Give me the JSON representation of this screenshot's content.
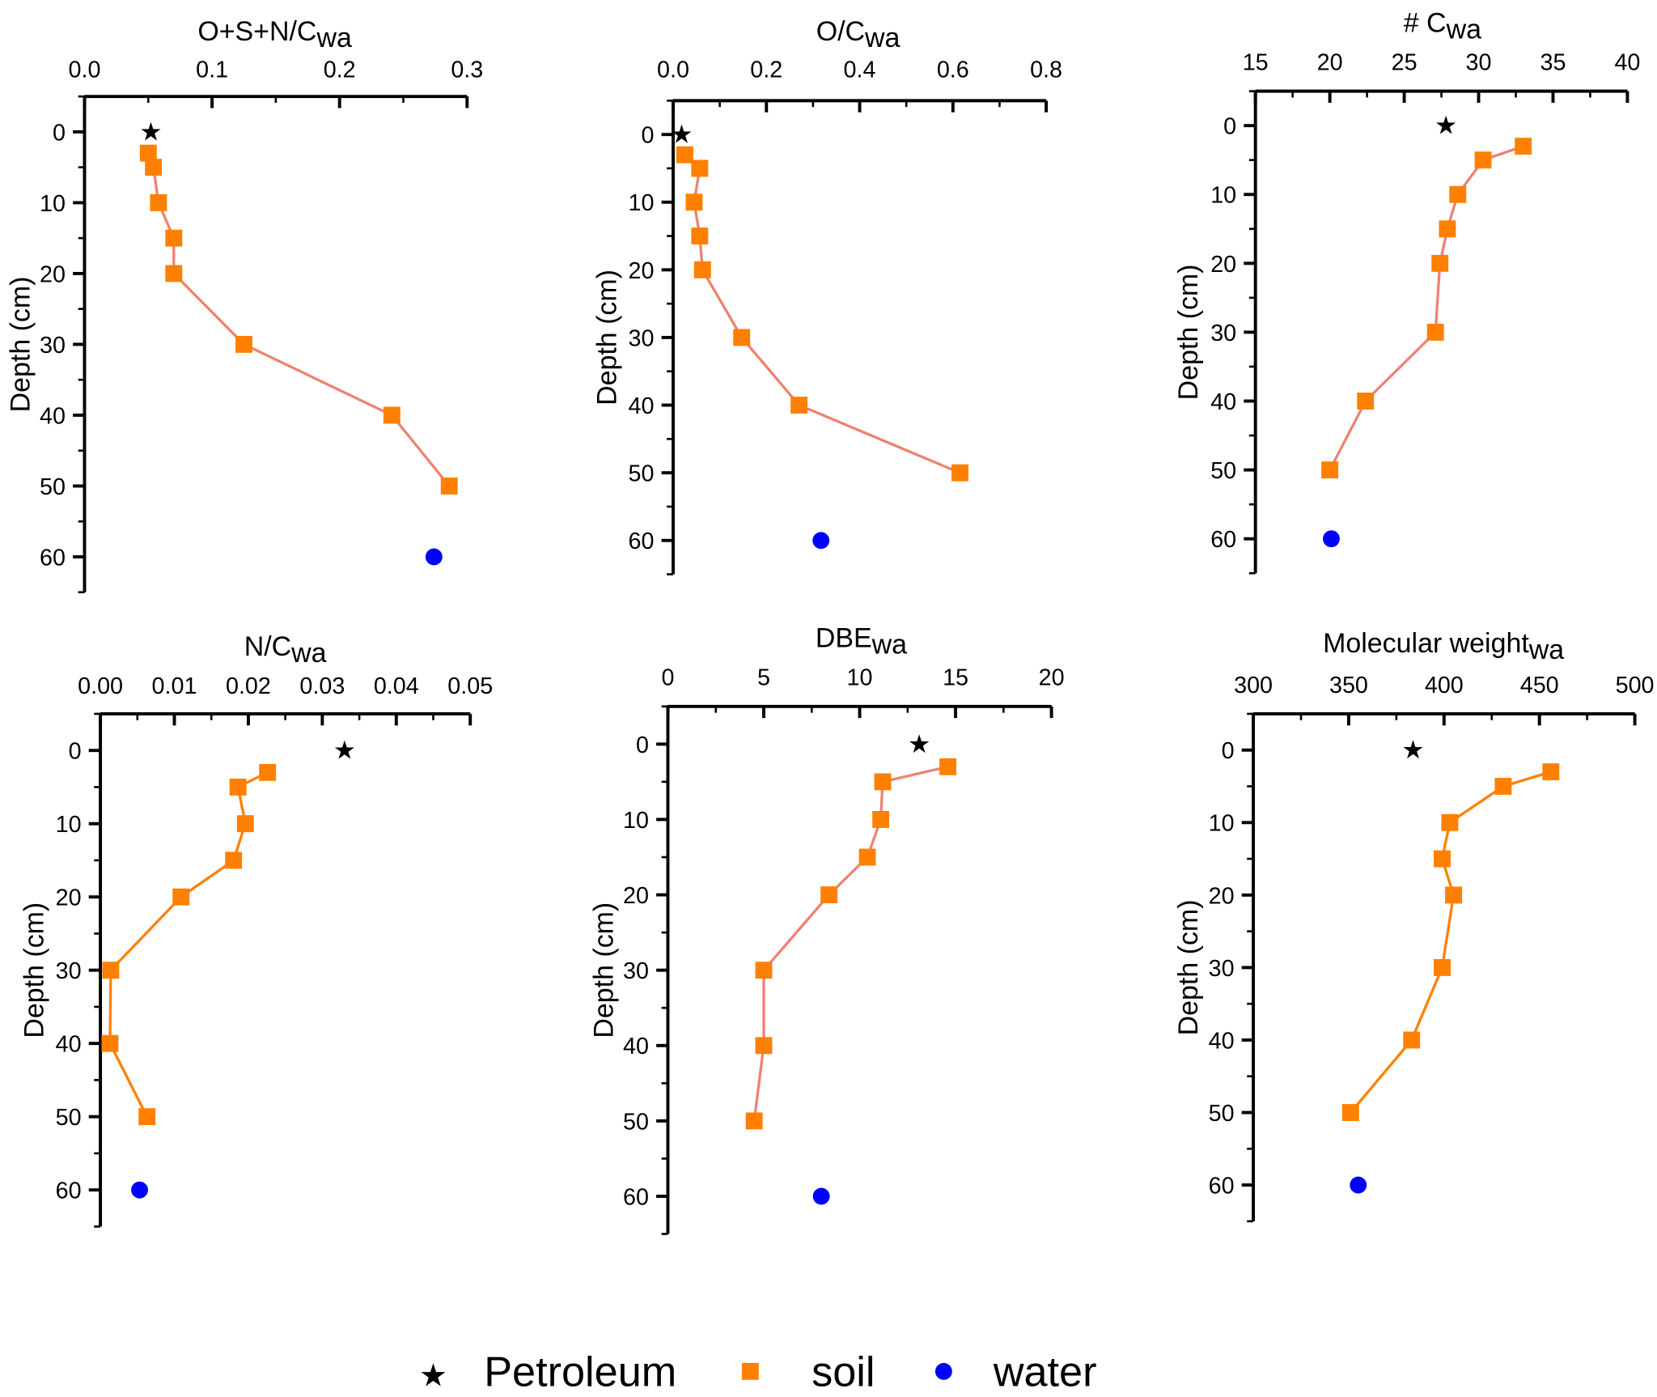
{
  "colors": {
    "petroleum": "#000000",
    "soil": "#ff8000",
    "water": "#0000ff",
    "line_salmon": "#f08070",
    "line_orange": "#ff8000"
  },
  "legend": [
    {
      "label": "Petroleum",
      "marker": "star"
    },
    {
      "label": "soil",
      "marker": "square"
    },
    {
      "label": "water",
      "marker": "circle"
    }
  ],
  "chart_data": [
    {
      "type": "line",
      "title_main": "O+S+N/C",
      "title_sub": "wa",
      "ylabel": "Depth (cm)",
      "xlim": [
        0,
        0.3
      ],
      "xticks": [
        "0.0",
        "0.1",
        "0.2",
        "0.3"
      ],
      "xtick_values": [
        0,
        0.1,
        0.2,
        0.3
      ],
      "xminor": 0.05,
      "ylim": [
        65,
        -5
      ],
      "yticks": [
        0,
        10,
        20,
        30,
        40,
        50,
        60
      ],
      "line_color": "salmon",
      "petroleum": {
        "x": 0.052,
        "depth": 0
      },
      "soil": {
        "x": [
          0.05,
          0.054,
          0.058,
          0.07,
          0.07,
          0.125,
          0.241,
          0.286
        ],
        "depth": [
          3,
          5,
          10,
          15,
          20,
          30,
          40,
          50
        ]
      },
      "water": {
        "x": 0.274,
        "depth": 60
      }
    },
    {
      "type": "line",
      "title_main": "O/C",
      "title_sub": "wa",
      "ylabel": "Depth (cm)",
      "xlim": [
        0,
        0.8
      ],
      "xticks": [
        "0.0",
        "0.2",
        "0.4",
        "0.6",
        "0.8"
      ],
      "xtick_values": [
        0,
        0.2,
        0.4,
        0.6,
        0.8
      ],
      "xminor": 0.1,
      "ylim": [
        65,
        -5
      ],
      "yticks": [
        0,
        10,
        20,
        30,
        40,
        50,
        60
      ],
      "line_color": "salmon",
      "petroleum": {
        "x": 0.018,
        "depth": 0
      },
      "soil": {
        "x": [
          0.025,
          0.057,
          0.045,
          0.057,
          0.063,
          0.147,
          0.27,
          0.615
        ],
        "depth": [
          3,
          5,
          10,
          15,
          20,
          30,
          40,
          50
        ]
      },
      "water": {
        "x": 0.317,
        "depth": 60
      }
    },
    {
      "type": "line",
      "title_main": "# C",
      "title_sub": "wa",
      "ylabel": "Depth (cm)",
      "xlim": [
        15,
        40
      ],
      "xticks": [
        "15",
        "20",
        "25",
        "30",
        "35",
        "40"
      ],
      "xtick_values": [
        15,
        20,
        25,
        30,
        35,
        40
      ],
      "xminor": 2.5,
      "ylim": [
        65,
        -5
      ],
      "yticks": [
        0,
        10,
        20,
        30,
        40,
        50,
        60
      ],
      "line_color": "salmon",
      "petroleum": {
        "x": 27.8,
        "depth": 0
      },
      "soil": {
        "x": [
          33.0,
          30.3,
          28.6,
          27.9,
          27.4,
          27.1,
          22.4,
          20.0
        ],
        "depth": [
          3,
          5,
          10,
          15,
          20,
          30,
          40,
          50
        ]
      },
      "water": {
        "x": 20.1,
        "depth": 60
      }
    },
    {
      "type": "line",
      "title_main": "N/C",
      "title_sub": "wa",
      "ylabel": "Depth (cm)",
      "xlim": [
        0,
        0.05
      ],
      "xticks": [
        "0.00",
        "0.01",
        "0.02",
        "0.03",
        "0.04",
        "0.05"
      ],
      "xtick_values": [
        0,
        0.01,
        0.02,
        0.03,
        0.04,
        0.05
      ],
      "xminor": 0.005,
      "ylim": [
        65,
        -5
      ],
      "yticks": [
        0,
        10,
        20,
        30,
        40,
        50,
        60
      ],
      "line_color": "orange",
      "petroleum": {
        "x": 0.033,
        "depth": 0
      },
      "soil": {
        "x": [
          0.0226,
          0.0186,
          0.0196,
          0.018,
          0.0109,
          0.0014,
          0.0013,
          0.0063
        ],
        "depth": [
          3,
          5,
          10,
          15,
          20,
          30,
          40,
          50
        ]
      },
      "water": {
        "x": 0.0053,
        "depth": 60
      }
    },
    {
      "type": "line",
      "title_main": "DBE",
      "title_sub": "wa",
      "ylabel": "Depth (cm)",
      "xlim": [
        0,
        20
      ],
      "xticks": [
        "0",
        "5",
        "10",
        "15",
        "20"
      ],
      "xtick_values": [
        0,
        5,
        10,
        15,
        20
      ],
      "xminor": 2.5,
      "ylim": [
        65,
        -5
      ],
      "yticks": [
        0,
        10,
        20,
        30,
        40,
        50,
        60
      ],
      "line_color": "salmon",
      "petroleum": {
        "x": 13.1,
        "depth": 0
      },
      "soil": {
        "x": [
          14.6,
          11.2,
          11.1,
          10.4,
          8.4,
          5.0,
          5.0,
          4.5
        ],
        "depth": [
          3,
          5,
          10,
          15,
          20,
          30,
          40,
          50
        ]
      },
      "water": {
        "x": 8.0,
        "depth": 60
      }
    },
    {
      "type": "line",
      "title_main": "Molecular weight",
      "title_sub": "wa",
      "ylabel": "Depth (cm)",
      "xlim": [
        300,
        500
      ],
      "xticks": [
        "300",
        "350",
        "400",
        "450",
        "500"
      ],
      "xtick_values": [
        300,
        350,
        400,
        450,
        500
      ],
      "xminor": 25,
      "ylim": [
        65,
        -5
      ],
      "yticks": [
        0,
        10,
        20,
        30,
        40,
        50,
        60
      ],
      "line_color": "orange",
      "petroleum": {
        "x": 383.7,
        "depth": 0
      },
      "soil": {
        "x": [
          456,
          431,
          403,
          399,
          405,
          399,
          383,
          351
        ],
        "depth": [
          3,
          5,
          10,
          15,
          20,
          30,
          40,
          50
        ]
      },
      "water": {
        "x": 355,
        "depth": 60
      }
    }
  ]
}
